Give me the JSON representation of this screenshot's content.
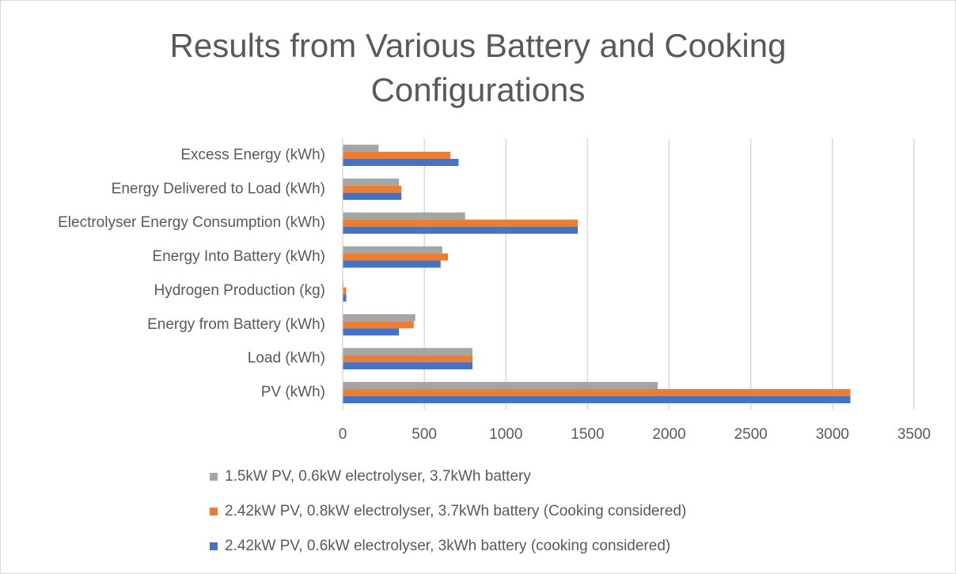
{
  "chart_data": {
    "type": "hbar",
    "title": "Results from Various Battery and Cooking Configurations",
    "categories": [
      "PV (kWh)",
      "Load (kWh)",
      "Energy from Battery (kWh)",
      "Hydrogen Production (kg)",
      "Energy Into Battery (kWh)",
      "Electrolyser Energy Consumption (kWh)",
      "Energy Delivered to Load (kWh)",
      "Excess Energy (kWh)"
    ],
    "series": [
      {
        "name": "1.5kW PV, 0.6kW electrolyser, 3.7kWh battery",
        "color": "#a5a5a5",
        "values": [
          1930,
          795,
          445,
          5,
          610,
          750,
          345,
          220
        ]
      },
      {
        "name": "2.42kW PV, 0.8kW electrolyser, 3.7kWh battery (Cooking considered)",
        "color": "#ed7d31",
        "values": [
          3110,
          795,
          435,
          22,
          645,
          1440,
          360,
          660
        ]
      },
      {
        "name": "2.42kW PV, 0.6kW electrolyser, 3kWh battery (cooking considered)",
        "color": "#4472c4",
        "values": [
          3110,
          795,
          345,
          22,
          600,
          1440,
          360,
          710
        ]
      }
    ],
    "xlim": [
      0,
      3500
    ],
    "xticks": [
      0,
      500,
      1000,
      1500,
      2000,
      2500,
      3000,
      3500
    ],
    "grid": true
  }
}
